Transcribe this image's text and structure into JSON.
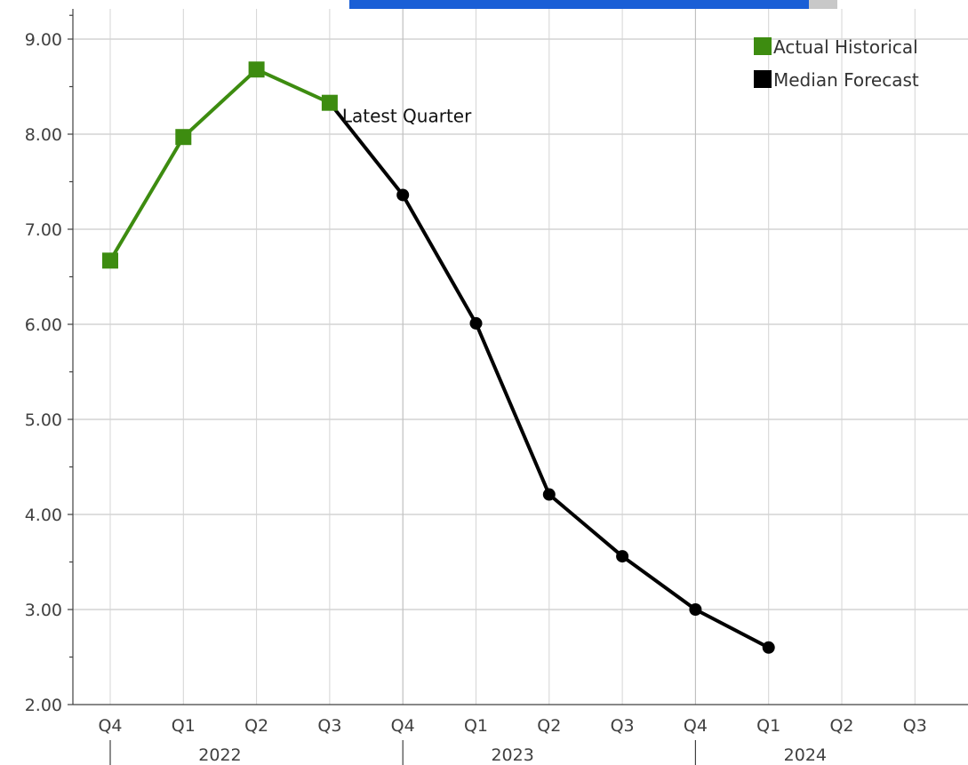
{
  "chart_data": {
    "type": "line",
    "title": "",
    "xlabel": "",
    "ylabel": "",
    "categories": [
      "Q4",
      "Q1",
      "Q2",
      "Q3",
      "Q4",
      "Q1",
      "Q2",
      "Q3",
      "Q4",
      "Q1",
      "Q2",
      "Q3"
    ],
    "years": [
      {
        "label": "2022",
        "start": 0,
        "end": 4
      },
      {
        "label": "2023",
        "start": 4,
        "end": 8
      },
      {
        "label": "2024",
        "start": 8,
        "end": 12
      }
    ],
    "ylim": [
      2.0,
      9.0
    ],
    "yticks": [
      "9.00",
      "8.00",
      "7.00",
      "6.00",
      "5.00",
      "4.00",
      "3.00",
      "2.00"
    ],
    "ytick_values": [
      9,
      8,
      7,
      6,
      5,
      4,
      3,
      2
    ],
    "grid": true,
    "legend_position": "top-right",
    "series": [
      {
        "name": "Actual Historical",
        "color": "#3d8c10",
        "marker": "square",
        "points": [
          {
            "index": 0,
            "value": 6.67
          },
          {
            "index": 1,
            "value": 7.97
          },
          {
            "index": 2,
            "value": 8.68
          },
          {
            "index": 3,
            "value": 8.33
          }
        ]
      },
      {
        "name": "Median Forecast",
        "color": "#000000",
        "marker": "circle",
        "points": [
          {
            "index": 3,
            "value": 8.33
          },
          {
            "index": 4,
            "value": 7.36
          },
          {
            "index": 5,
            "value": 6.01
          },
          {
            "index": 6,
            "value": 4.21
          },
          {
            "index": 7,
            "value": 3.56
          },
          {
            "index": 8,
            "value": 3.0
          },
          {
            "index": 9,
            "value": 2.6
          }
        ]
      }
    ],
    "annotations": [
      {
        "text": "Latest Quarter",
        "index": 3,
        "value": 8.33
      }
    ]
  }
}
